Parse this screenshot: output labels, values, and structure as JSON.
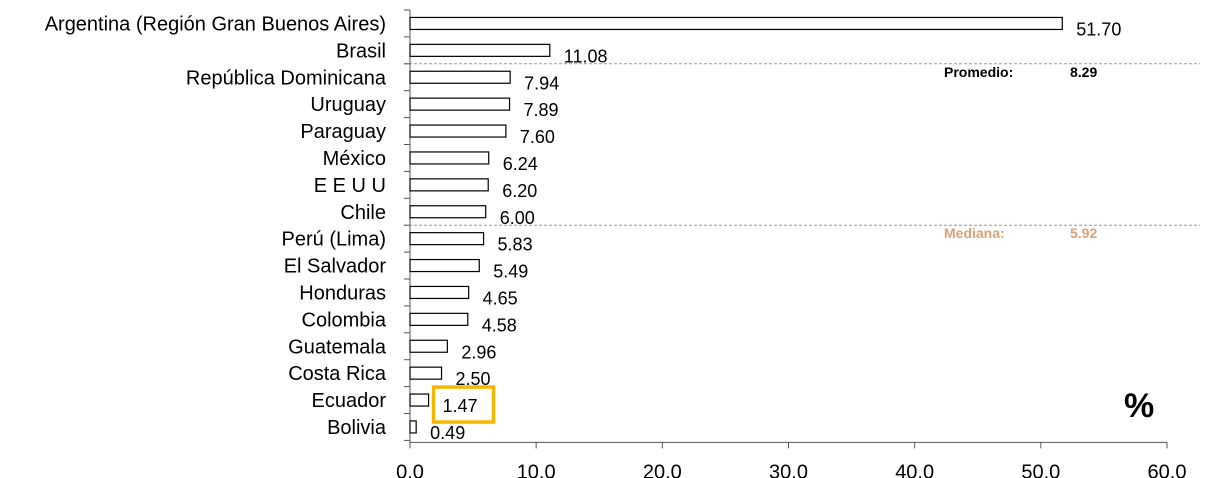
{
  "chart_data": {
    "type": "bar",
    "orientation": "horizontal",
    "categories": [
      "Argentina (Región Gran Buenos Aires)",
      "Brasil",
      "República Dominicana",
      "Uruguay",
      "Paraguay",
      "México",
      "E E U U",
      "Chile",
      "Perú (Lima)",
      "El Salvador",
      "Honduras",
      "Colombia",
      "Guatemala",
      "Costa Rica",
      "Ecuador",
      "Bolivia"
    ],
    "values": [
      51.7,
      11.08,
      7.94,
      7.89,
      7.6,
      6.24,
      6.2,
      6.0,
      5.83,
      5.49,
      4.65,
      4.58,
      2.96,
      2.5,
      1.47,
      0.49
    ],
    "value_labels": [
      "51.70",
      "11.08",
      "7.94",
      "7.89",
      "7.60",
      "6.24",
      "6.20",
      "6.00",
      "5.83",
      "5.49",
      "4.65",
      "4.58",
      "2.96",
      "2.50",
      "1.47",
      "0.49"
    ],
    "xlim": [
      0,
      60
    ],
    "xticks": [
      0,
      10,
      20,
      30,
      40,
      50,
      60
    ],
    "xtick_labels": [
      "0.0",
      "10.0",
      "20.0",
      "30.0",
      "40.0",
      "50.0",
      "60.0"
    ],
    "unit_label": "%",
    "highlighted_category": "Ecuador",
    "highlight_color": "#f5b800",
    "bar_fill": "#ffffff",
    "bar_stroke": "#000000",
    "reference_lines": [
      {
        "label": "Promedio:",
        "value_text": "8.29",
        "after_category": "Brasil",
        "color": "#000000",
        "line_color": "#999999"
      },
      {
        "label": "Mediana:",
        "value_text": "5.92",
        "after_category": "Chile",
        "color": "#d9a273",
        "line_color": "#999999"
      }
    ],
    "grid": false,
    "legend": "none"
  }
}
